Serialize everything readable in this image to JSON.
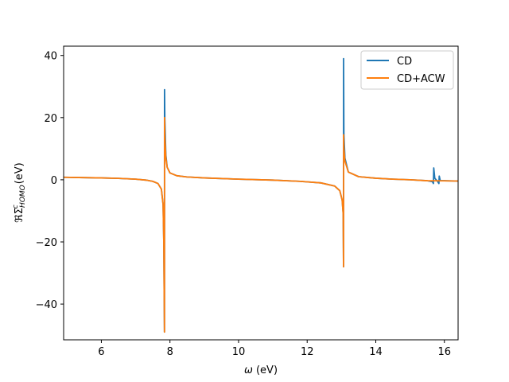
{
  "chart_data": {
    "type": "line",
    "xlabel_symbol": "ω",
    "xlabel_unit": "(eV)",
    "ylabel_prefix": "ℜΣ",
    "ylabel_sup": "c",
    "ylabel_sub": "HOMO",
    "ylabel_unit": "(eV)",
    "xlim": [
      4.9,
      16.4
    ],
    "ylim": [
      -51.5,
      43.0
    ],
    "xticks": [
      6,
      8,
      10,
      12,
      14,
      16
    ],
    "yticks": [
      -40,
      -20,
      0,
      20,
      40
    ],
    "xtick_labels": [
      "6",
      "8",
      "10",
      "12",
      "14",
      "16"
    ],
    "ytick_labels": [
      "−40",
      "−20",
      "0",
      "20",
      "40"
    ],
    "legend_position": "top-right",
    "series": [
      {
        "name": "CD",
        "color": "#1f77b4",
        "points": [
          [
            4.9,
            0.8
          ],
          [
            5.5,
            0.7
          ],
          [
            6.0,
            0.6
          ],
          [
            6.5,
            0.45
          ],
          [
            7.0,
            0.2
          ],
          [
            7.3,
            -0.1
          ],
          [
            7.5,
            -0.5
          ],
          [
            7.65,
            -1.2
          ],
          [
            7.75,
            -3.0
          ],
          [
            7.8,
            -8.0
          ],
          [
            7.82,
            -20.0
          ],
          [
            7.84,
            -49.0
          ],
          [
            7.842,
            29.0
          ],
          [
            7.85,
            20.0
          ],
          [
            7.88,
            8.0
          ],
          [
            7.92,
            4.0
          ],
          [
            8.0,
            2.2
          ],
          [
            8.2,
            1.3
          ],
          [
            8.5,
            0.9
          ],
          [
            9.0,
            0.6
          ],
          [
            10.0,
            0.2
          ],
          [
            11.0,
            -0.1
          ],
          [
            11.8,
            -0.5
          ],
          [
            12.4,
            -1.0
          ],
          [
            12.8,
            -2.0
          ],
          [
            12.95,
            -3.5
          ],
          [
            13.02,
            -6.5
          ],
          [
            13.05,
            -11.0
          ],
          [
            13.06,
            -28.0
          ],
          [
            13.062,
            39.0
          ],
          [
            13.07,
            15.0
          ],
          [
            13.1,
            7.0
          ],
          [
            13.2,
            2.5
          ],
          [
            13.5,
            1.0
          ],
          [
            14.0,
            0.5
          ],
          [
            14.5,
            0.2
          ],
          [
            15.0,
            0.0
          ],
          [
            15.5,
            -0.3
          ],
          [
            15.65,
            -0.6
          ],
          [
            15.68,
            -1.2
          ],
          [
            15.69,
            3.8
          ],
          [
            15.72,
            0.5
          ],
          [
            15.8,
            -0.5
          ],
          [
            15.84,
            -1.2
          ],
          [
            15.85,
            1.2
          ],
          [
            15.88,
            -0.3
          ],
          [
            16.0,
            -0.3
          ],
          [
            16.4,
            -0.4
          ]
        ]
      },
      {
        "name": "CD+ACW",
        "color": "#ff7f0e",
        "points": [
          [
            4.9,
            0.8
          ],
          [
            5.5,
            0.7
          ],
          [
            6.0,
            0.6
          ],
          [
            6.5,
            0.45
          ],
          [
            7.0,
            0.2
          ],
          [
            7.3,
            -0.1
          ],
          [
            7.5,
            -0.5
          ],
          [
            7.65,
            -1.2
          ],
          [
            7.75,
            -3.0
          ],
          [
            7.8,
            -8.0
          ],
          [
            7.82,
            -20.0
          ],
          [
            7.84,
            -49.0
          ],
          [
            7.842,
            20.0
          ],
          [
            7.85,
            14.0
          ],
          [
            7.88,
            7.0
          ],
          [
            7.92,
            4.0
          ],
          [
            8.0,
            2.2
          ],
          [
            8.2,
            1.3
          ],
          [
            8.5,
            0.9
          ],
          [
            9.0,
            0.6
          ],
          [
            10.0,
            0.2
          ],
          [
            11.0,
            -0.1
          ],
          [
            11.8,
            -0.5
          ],
          [
            12.4,
            -1.0
          ],
          [
            12.8,
            -2.0
          ],
          [
            12.95,
            -3.5
          ],
          [
            13.02,
            -6.5
          ],
          [
            13.05,
            -11.0
          ],
          [
            13.06,
            -28.0
          ],
          [
            13.062,
            14.5
          ],
          [
            13.07,
            10.0
          ],
          [
            13.1,
            6.0
          ],
          [
            13.2,
            2.5
          ],
          [
            13.5,
            1.0
          ],
          [
            14.0,
            0.5
          ],
          [
            14.5,
            0.2
          ],
          [
            15.0,
            0.0
          ],
          [
            15.5,
            -0.3
          ],
          [
            16.0,
            -0.35
          ],
          [
            16.4,
            -0.4
          ]
        ]
      }
    ]
  }
}
